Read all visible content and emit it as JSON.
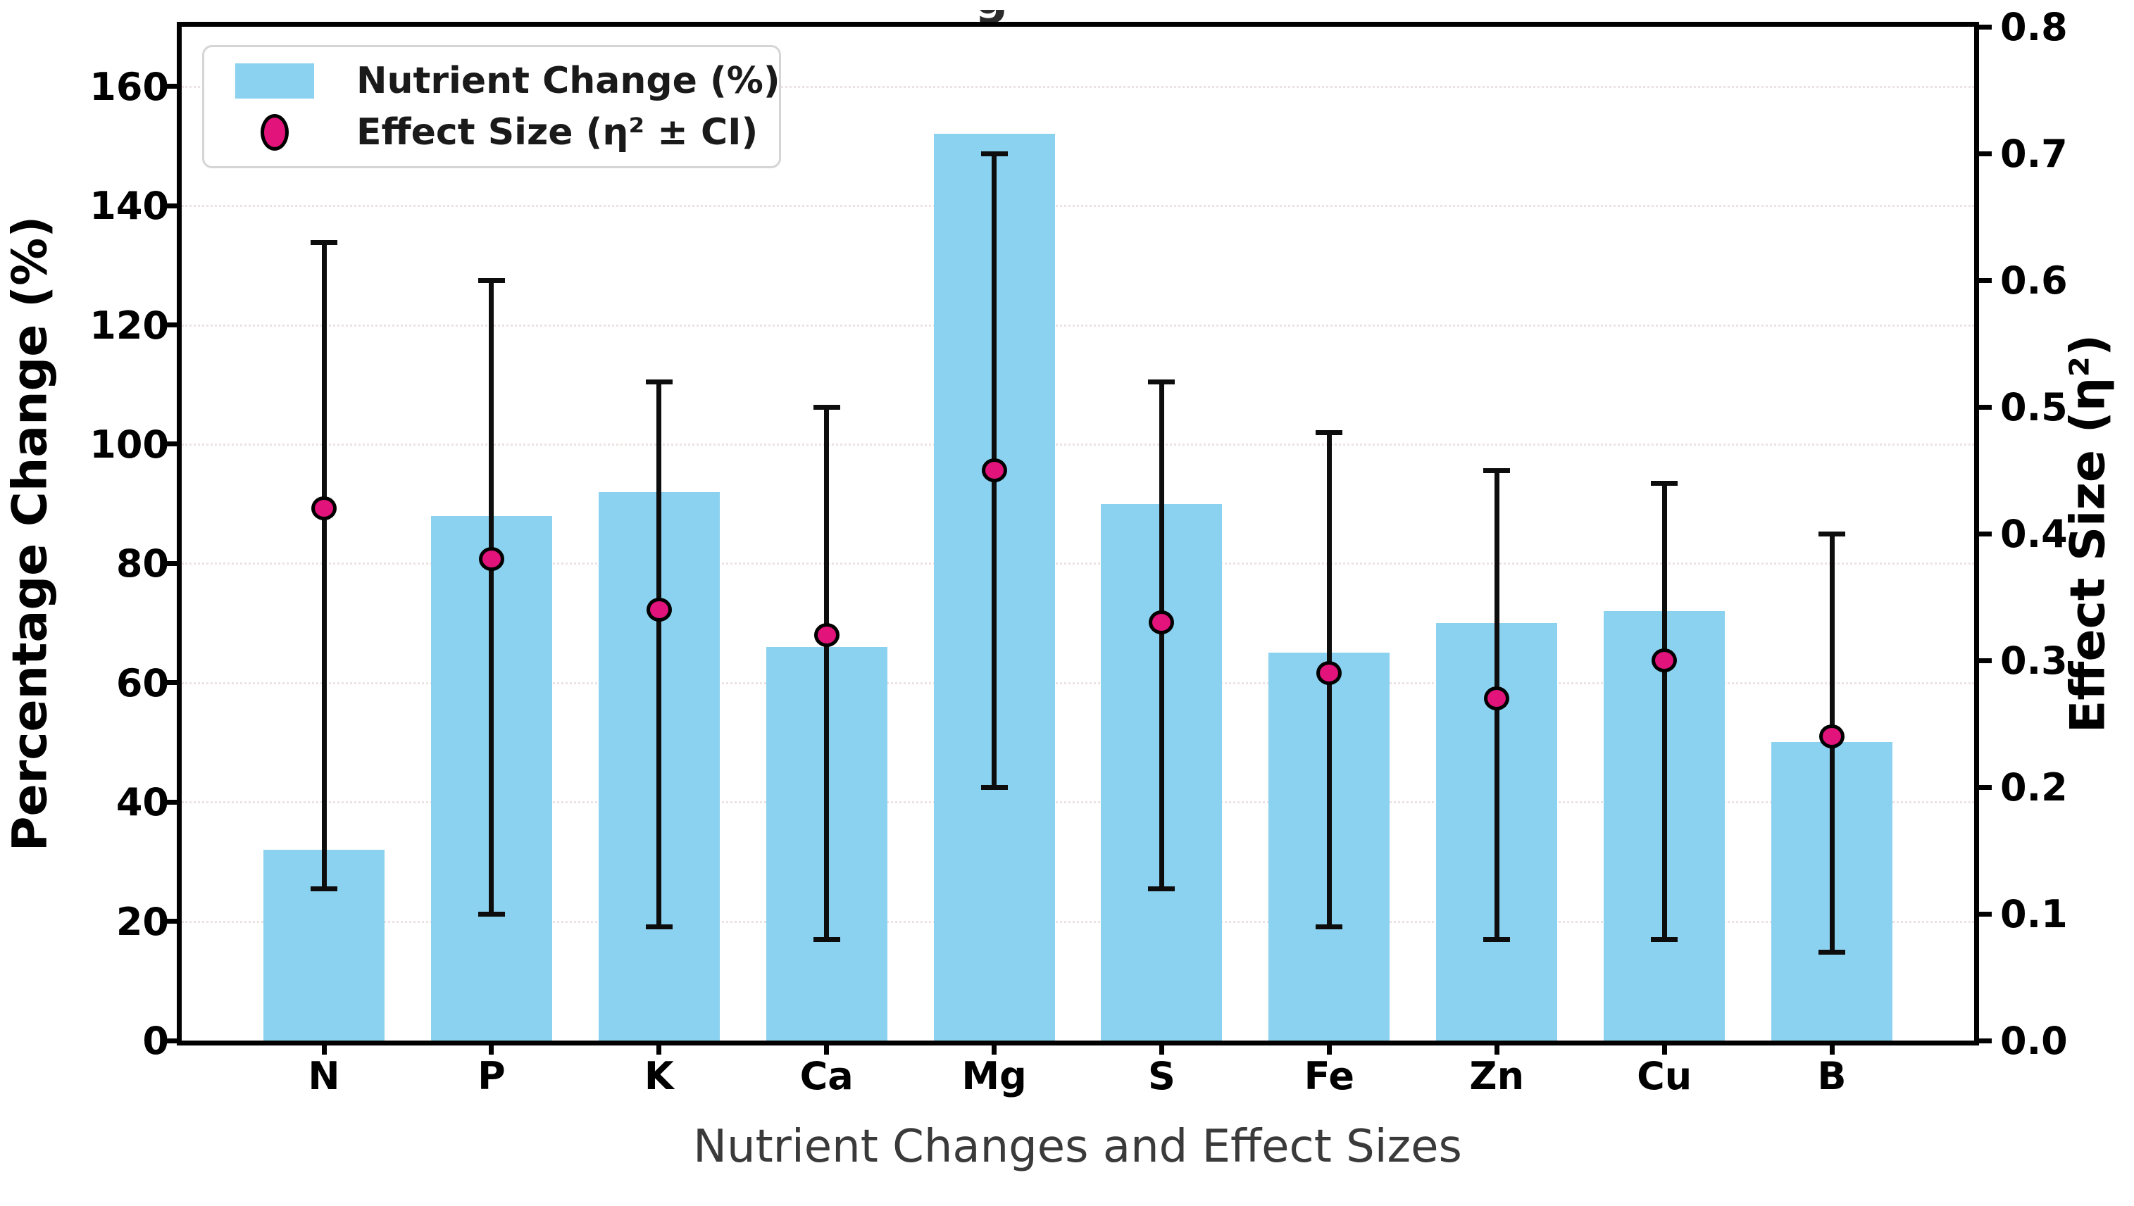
{
  "chart_data": {
    "type": "bar",
    "xlabel": "Nutrient Changes and Effect Sizes",
    "ylabel_left": "Percentage Change (%)",
    "ylabel_right": "Effect Size (η²)",
    "title_fragment_visible": "g",
    "categories": [
      "N",
      "P",
      "K",
      "Ca",
      "Mg",
      "S",
      "Fe",
      "Zn",
      "Cu",
      "B"
    ],
    "series": [
      {
        "name": "Nutrient Change (%)",
        "type": "bar",
        "axis": "left",
        "values": [
          32,
          88,
          92,
          66,
          152,
          90,
          65,
          70,
          72,
          50
        ]
      },
      {
        "name": "Effect Size (η² ± CI)",
        "type": "scatter",
        "axis": "right",
        "values": [
          0.42,
          0.38,
          0.34,
          0.32,
          0.45,
          0.33,
          0.29,
          0.27,
          0.3,
          0.24
        ],
        "ci_low": [
          0.12,
          0.1,
          0.09,
          0.08,
          0.2,
          0.12,
          0.09,
          0.08,
          0.08,
          0.07
        ],
        "ci_high": [
          0.63,
          0.6,
          0.52,
          0.5,
          0.7,
          0.52,
          0.48,
          0.45,
          0.44,
          0.4
        ]
      }
    ],
    "left_axis": {
      "tick_labels": [
        "0",
        "20",
        "40",
        "60",
        "80",
        "100",
        "120",
        "140",
        "160"
      ],
      "tick_values": [
        0,
        20,
        40,
        60,
        80,
        100,
        120,
        140,
        160
      ],
      "max": 170
    },
    "right_axis": {
      "tick_labels": [
        "0.0",
        "0.1",
        "0.2",
        "0.3",
        "0.4",
        "0.5",
        "0.6",
        "0.7",
        "0.8"
      ],
      "tick_values": [
        0,
        0.1,
        0.2,
        0.3,
        0.4,
        0.5,
        0.6,
        0.7,
        0.8
      ],
      "max": 0.8
    },
    "grid": true,
    "legend_position": "upper left",
    "colors": {
      "bar": "#8BD2F0",
      "marker": "#E2137B",
      "marker_edge": "#000000",
      "errorbar": "#0d0d0d",
      "grid": "#ece2e2",
      "xlabel_text": "#3a3a3a",
      "axis_text": "#000000"
    }
  },
  "legend": {
    "items": [
      {
        "label": "Nutrient Change (%)",
        "marker": "bar-swatch"
      },
      {
        "label": "Effect Size (η² ± CI)",
        "marker": "dot"
      }
    ]
  }
}
